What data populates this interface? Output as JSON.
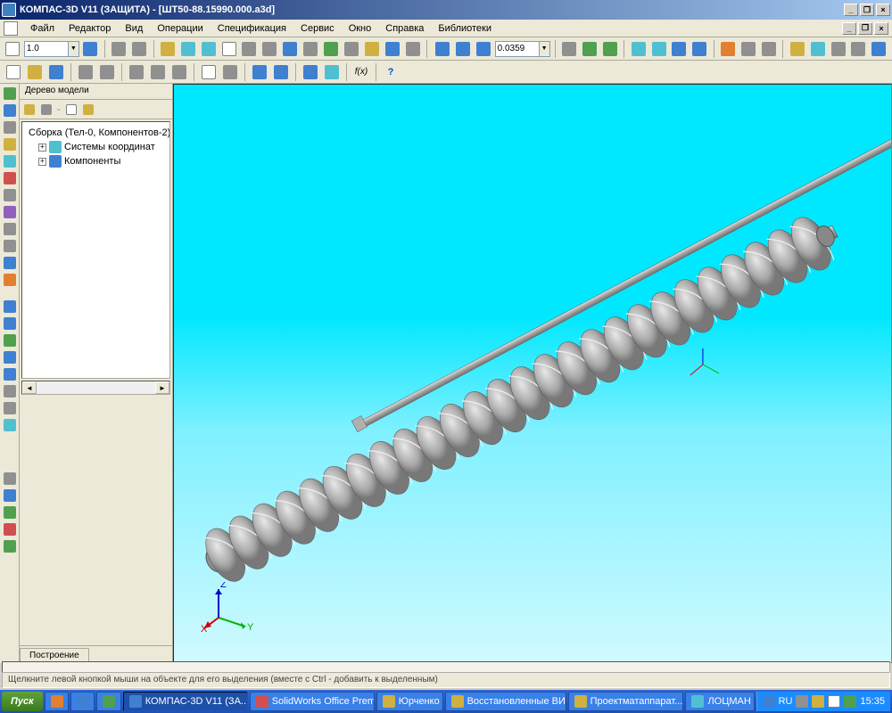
{
  "window": {
    "title": "КОМПАС-3D V11 (ЗАЩИТА) - [ШТ50-88.15990.000.a3d]"
  },
  "menu": {
    "file": "Файл",
    "edit": "Редактор",
    "view": "Вид",
    "operations": "Операции",
    "spec": "Спецификация",
    "service": "Сервис",
    "window": "Окно",
    "help": "Справка",
    "libs": "Библиотеки"
  },
  "toolbar1": {
    "scale_value": "1.0",
    "measure_value": "0.0359"
  },
  "panel": {
    "title": "Дерево модели",
    "root": "Сборка (Тел-0, Компонентов-2)",
    "node1": "Системы координат",
    "node2": "Компоненты"
  },
  "bottom_tab": "Построение",
  "status_hint": "Щелкните левой кнопкой мыши на объекте для его выделения (вместе с Ctrl - добавить к выделенным)",
  "taskbar": {
    "start": "Пуск",
    "items": [
      "КОМПАС-3D V11 (ЗА...",
      "SolidWorks Office Premi...",
      "Юрченко",
      "Восстановленные ВИ",
      "Проектматаппарат...",
      "ЛОЦМАН"
    ],
    "time": "15:35",
    "lang": "RU"
  },
  "model": {
    "viewport_bg_top": "#00e8ff",
    "viewport_bg_bottom": "#d0faff",
    "auger_color": "#b8b8b8",
    "auger_shadow": "#808080",
    "rod_color": "#c0c0c0"
  }
}
